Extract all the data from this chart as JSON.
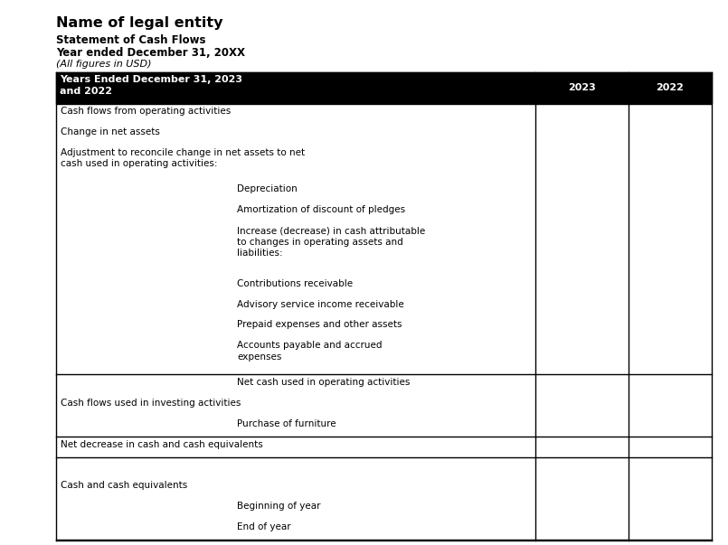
{
  "title_line1": "Name of legal entity",
  "title_line2": "Statement of Cash Flows",
  "title_line3": "Year ended December 31, 20XX",
  "title_line4": "(All figures in USD)",
  "col2023": "2023",
  "col2022": "2022",
  "header_bg": "#000000",
  "header_fg": "#ffffff",
  "bg_color": "#ffffff",
  "border_color": "#000000",
  "rows": [
    {
      "label": "Cash flows from operating activities",
      "indent": 0,
      "line_above": false,
      "line_below": false,
      "extra_space_above": false
    },
    {
      "label": "Change in net assets",
      "indent": 0,
      "line_above": false,
      "line_below": false,
      "extra_space_above": false
    },
    {
      "label": "Adjustment to reconcile change in net assets to net\ncash used in operating activities:",
      "indent": 0,
      "line_above": false,
      "line_below": false,
      "extra_space_above": false
    },
    {
      "label": "Depreciation",
      "indent": 1,
      "line_above": false,
      "line_below": false,
      "extra_space_above": false
    },
    {
      "label": "Amortization of discount of pledges",
      "indent": 1,
      "line_above": false,
      "line_below": false,
      "extra_space_above": false
    },
    {
      "label": "Increase (decrease) in cash attributable\nto changes in operating assets and\nliabilities:",
      "indent": 1,
      "line_above": false,
      "line_below": false,
      "extra_space_above": false
    },
    {
      "label": "Contributions receivable",
      "indent": 1,
      "line_above": false,
      "line_below": false,
      "extra_space_above": false
    },
    {
      "label": "Advisory service income receivable",
      "indent": 1,
      "line_above": false,
      "line_below": false,
      "extra_space_above": false
    },
    {
      "label": "Prepaid expenses and other assets",
      "indent": 1,
      "line_above": false,
      "line_below": false,
      "extra_space_above": false
    },
    {
      "label": "Accounts payable and accrued\nexpenses",
      "indent": 1,
      "line_above": false,
      "line_below": true,
      "extra_space_above": false
    },
    {
      "label": "Net cash used in operating activities",
      "indent": 1,
      "line_above": false,
      "line_below": false,
      "extra_space_above": false
    },
    {
      "label": "Cash flows used in investing activities",
      "indent": 0,
      "line_above": false,
      "line_below": false,
      "extra_space_above": false
    },
    {
      "label": "Purchase of furniture",
      "indent": 1,
      "line_above": false,
      "line_below": true,
      "extra_space_above": false
    },
    {
      "label": "Net decrease in cash and cash equivalents",
      "indent": 0,
      "line_above": false,
      "line_below": true,
      "extra_space_above": false
    },
    {
      "label": "",
      "indent": 0,
      "line_above": false,
      "line_below": false,
      "extra_space_above": false
    },
    {
      "label": "Cash and cash equivalents",
      "indent": 0,
      "line_above": false,
      "line_below": false,
      "extra_space_above": false
    },
    {
      "label": "Beginning of year",
      "indent": 1,
      "line_above": false,
      "line_below": false,
      "extra_space_above": false
    },
    {
      "label": "End of year",
      "indent": 1,
      "line_above": false,
      "line_below": true,
      "extra_space_above": false
    }
  ],
  "fig_width": 8.05,
  "fig_height": 6.03,
  "dpi": 100
}
